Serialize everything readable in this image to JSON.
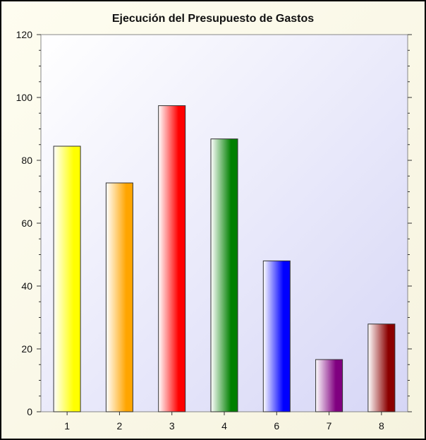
{
  "chart_data": {
    "type": "bar",
    "title": "Ejecución del Presupuesto de Gastos",
    "xlabel": "",
    "ylabel": "",
    "categories": [
      "1",
      "2",
      "3",
      "4",
      "6",
      "7",
      "8"
    ],
    "values": [
      84.5,
      72.8,
      97.4,
      86.8,
      48.0,
      16.6,
      27.9
    ],
    "colors": [
      "#ffff00",
      "#ffa500",
      "#ff0000",
      "#008000",
      "#0000ff",
      "#800080",
      "#8b0000"
    ],
    "ylim": [
      0,
      120
    ],
    "yticks": [
      0,
      20,
      40,
      60,
      80,
      100,
      120
    ],
    "grid": false,
    "legend": "none"
  }
}
